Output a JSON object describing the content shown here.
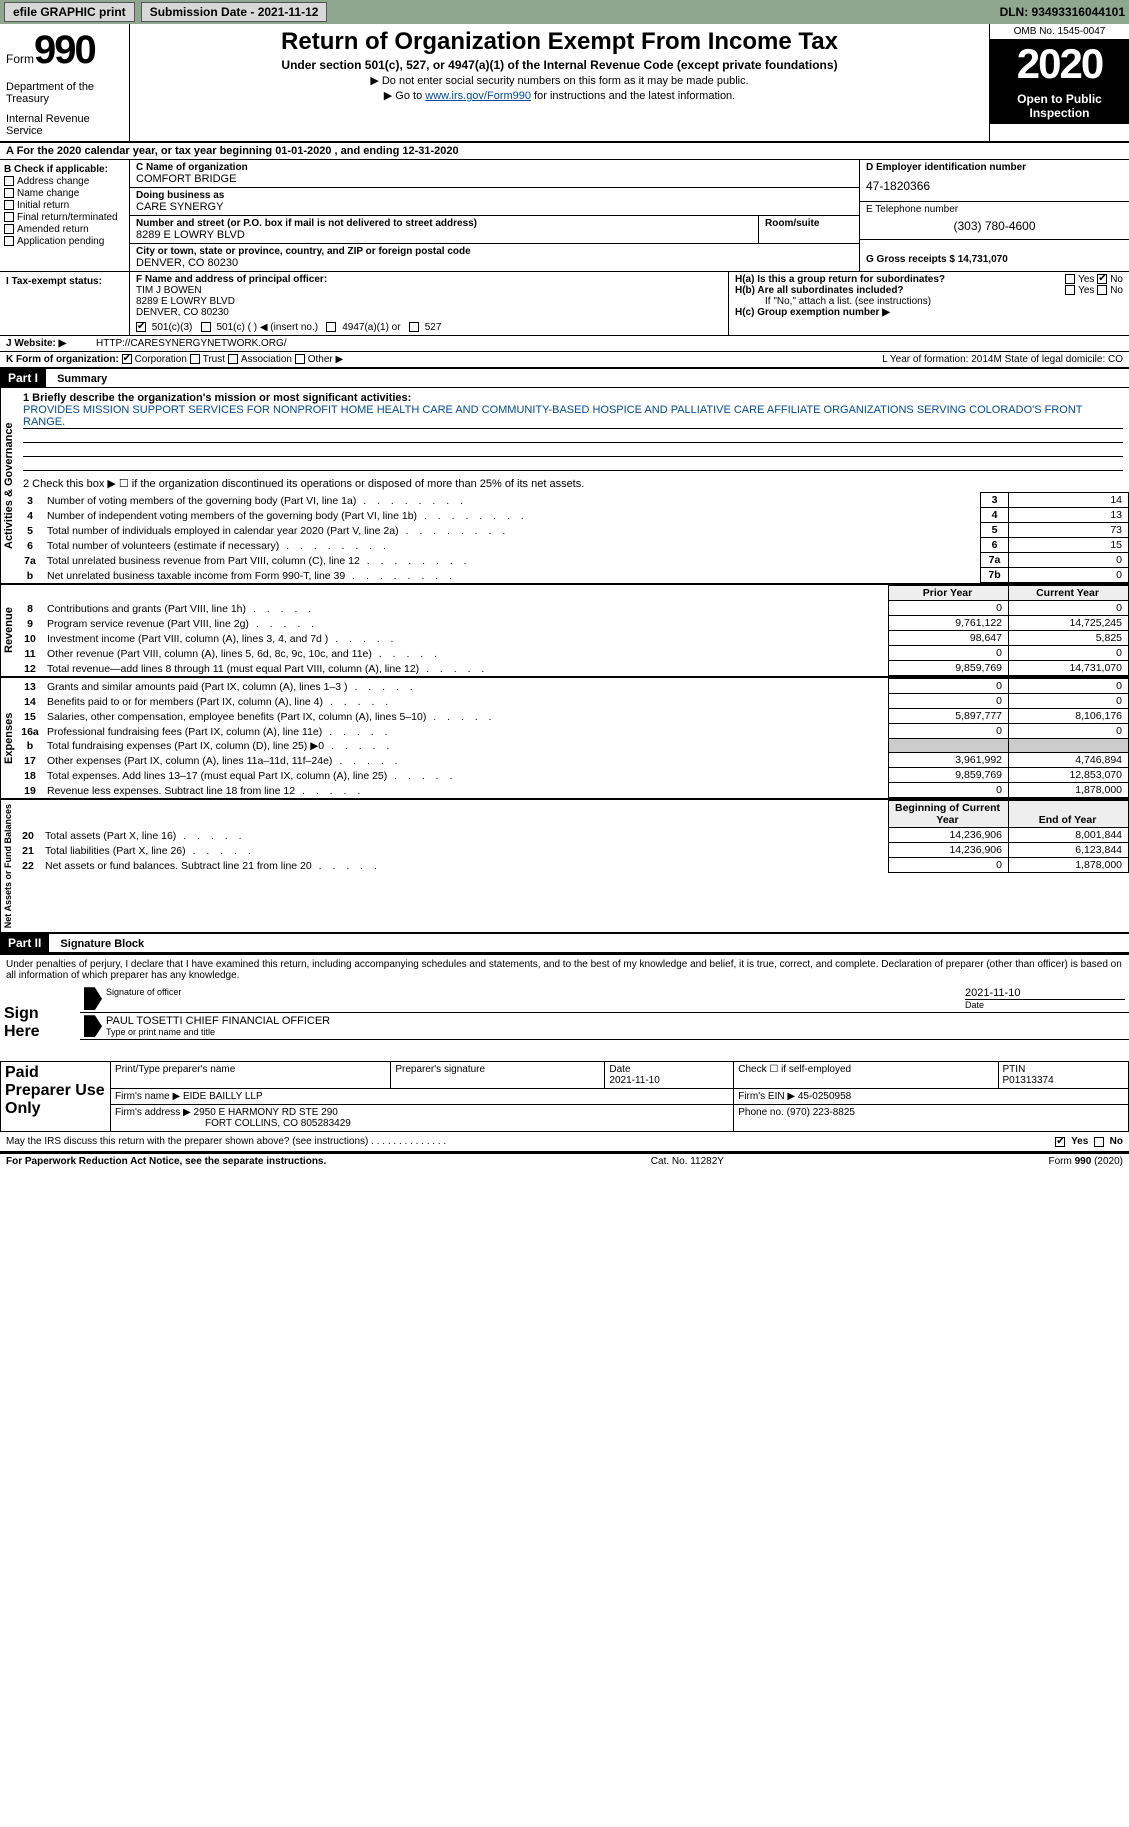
{
  "topbar": {
    "efile_label": "efile GRAPHIC print",
    "submission_label": "Submission Date - 2021-11-12",
    "dln_label": "DLN: 93493316044101"
  },
  "header": {
    "form_word": "Form",
    "form_num": "990",
    "dept1": "Department of the Treasury",
    "dept2": "Internal Revenue Service",
    "title": "Return of Organization Exempt From Income Tax",
    "subtitle": "Under section 501(c), 527, or 4947(a)(1) of the Internal Revenue Code (except private foundations)",
    "arrow1": "▶ Do not enter social security numbers on this form as it may be made public.",
    "arrow2_pre": "▶ Go to ",
    "arrow2_link": "www.irs.gov/Form990",
    "arrow2_post": " for instructions and the latest information.",
    "omb": "OMB No. 1545-0047",
    "year": "2020",
    "open1": "Open to Public",
    "open2": "Inspection"
  },
  "period": {
    "line": "A For the 2020 calendar year, or tax year beginning 01-01-2020   , and ending 12-31-2020"
  },
  "box_b": {
    "title": "B Check if applicable:",
    "items": [
      "Address change",
      "Name change",
      "Initial return",
      "Final return/terminated",
      "Amended return",
      "Application pending"
    ]
  },
  "box_c": {
    "name_lbl": "C Name of organization",
    "name": "COMFORT BRIDGE",
    "dba_lbl": "Doing business as",
    "dba": "CARE SYNERGY",
    "addr_lbl": "Number and street (or P.O. box if mail is not delivered to street address)",
    "addr": "8289 E LOWRY BLVD",
    "room_lbl": "Room/suite",
    "city_lbl": "City or town, state or province, country, and ZIP or foreign postal code",
    "city": "DENVER, CO  80230"
  },
  "box_d": {
    "ein_lbl": "D Employer identification number",
    "ein": "47-1820366",
    "phone_lbl": "E Telephone number",
    "phone": "(303) 780-4600",
    "gross_lbl": "G Gross receipts $ 14,731,070"
  },
  "box_f": {
    "lbl": "F Name and address of principal officer:",
    "name": "TIM J BOWEN",
    "addr1": "8289 E LOWRY BLVD",
    "addr2": "DENVER, CO  80230"
  },
  "box_h": {
    "ha": "H(a)  Is this a group return for subordinates?",
    "hb": "H(b)  Are all subordinates included?",
    "hb_note": "If \"No,\" attach a list. (see instructions)",
    "hc": "H(c)  Group exemption number ▶",
    "yes": "Yes",
    "no": "No"
  },
  "row_i": {
    "lbl": "I   Tax-exempt status:",
    "opts": [
      "501(c)(3)",
      "501(c) (  ) ◀ (insert no.)",
      "4947(a)(1) or",
      "527"
    ]
  },
  "row_j": {
    "lbl": "J   Website: ▶",
    "val": "HTTP://CARESYNERGYNETWORK.ORG/"
  },
  "row_k": {
    "lbl": "K Form of organization:",
    "opts": [
      "Corporation",
      "Trust",
      "Association",
      "Other ▶"
    ]
  },
  "row_lm": {
    "l": "L Year of formation: 2014",
    "m": "M State of legal domicile: CO"
  },
  "part1": {
    "hdr": "Part I",
    "title": "Summary",
    "mission_lbl": "1   Briefly describe the organization's mission or most significant activities:",
    "mission": "PROVIDES MISSION SUPPORT SERVICES FOR NONPROFIT HOME HEALTH CARE AND COMMUNITY-BASED HOSPICE AND PALLIATIVE CARE AFFILIATE ORGANIZATIONS SERVING COLORADO'S FRONT RANGE.",
    "line2": "2   Check this box ▶ ☐  if the organization discontinued its operations or disposed of more than 25% of its net assets.",
    "gov_rows": [
      {
        "n": "3",
        "t": "Number of voting members of the governing body (Part VI, line 1a)",
        "box": "3",
        "v": "14"
      },
      {
        "n": "4",
        "t": "Number of independent voting members of the governing body (Part VI, line 1b)",
        "box": "4",
        "v": "13"
      },
      {
        "n": "5",
        "t": "Total number of individuals employed in calendar year 2020 (Part V, line 2a)",
        "box": "5",
        "v": "73"
      },
      {
        "n": "6",
        "t": "Total number of volunteers (estimate if necessary)",
        "box": "6",
        "v": "15"
      },
      {
        "n": "7a",
        "t": "Total unrelated business revenue from Part VIII, column (C), line 12",
        "box": "7a",
        "v": "0"
      },
      {
        "n": "b",
        "t": "Net unrelated business taxable income from Form 990-T, line 39",
        "box": "7b",
        "v": "0"
      }
    ],
    "col_hdr_prior": "Prior Year",
    "col_hdr_curr": "Current Year",
    "rev_rows": [
      {
        "n": "8",
        "t": "Contributions and grants (Part VIII, line 1h)",
        "p": "0",
        "c": "0"
      },
      {
        "n": "9",
        "t": "Program service revenue (Part VIII, line 2g)",
        "p": "9,761,122",
        "c": "14,725,245"
      },
      {
        "n": "10",
        "t": "Investment income (Part VIII, column (A), lines 3, 4, and 7d )",
        "p": "98,647",
        "c": "5,825"
      },
      {
        "n": "11",
        "t": "Other revenue (Part VIII, column (A), lines 5, 6d, 8c, 9c, 10c, and 11e)",
        "p": "0",
        "c": "0"
      },
      {
        "n": "12",
        "t": "Total revenue—add lines 8 through 11 (must equal Part VIII, column (A), line 12)",
        "p": "9,859,769",
        "c": "14,731,070"
      }
    ],
    "exp_rows": [
      {
        "n": "13",
        "t": "Grants and similar amounts paid (Part IX, column (A), lines 1–3 )",
        "p": "0",
        "c": "0"
      },
      {
        "n": "14",
        "t": "Benefits paid to or for members (Part IX, column (A), line 4)",
        "p": "0",
        "c": "0"
      },
      {
        "n": "15",
        "t": "Salaries, other compensation, employee benefits (Part IX, column (A), lines 5–10)",
        "p": "5,897,777",
        "c": "8,106,176"
      },
      {
        "n": "16a",
        "t": "Professional fundraising fees (Part IX, column (A), line 11e)",
        "p": "0",
        "c": "0"
      },
      {
        "n": "b",
        "t": "Total fundraising expenses (Part IX, column (D), line 25) ▶0",
        "p": "",
        "c": "",
        "shade": true
      },
      {
        "n": "17",
        "t": "Other expenses (Part IX, column (A), lines 11a–11d, 11f–24e)",
        "p": "3,961,992",
        "c": "4,746,894"
      },
      {
        "n": "18",
        "t": "Total expenses. Add lines 13–17 (must equal Part IX, column (A), line 25)",
        "p": "9,859,769",
        "c": "12,853,070"
      },
      {
        "n": "19",
        "t": "Revenue less expenses. Subtract line 18 from line 12",
        "p": "0",
        "c": "1,878,000"
      }
    ],
    "col_hdr_begin": "Beginning of Current Year",
    "col_hdr_end": "End of Year",
    "net_rows": [
      {
        "n": "20",
        "t": "Total assets (Part X, line 16)",
        "p": "14,236,906",
        "c": "8,001,844"
      },
      {
        "n": "21",
        "t": "Total liabilities (Part X, line 26)",
        "p": "14,236,906",
        "c": "6,123,844"
      },
      {
        "n": "22",
        "t": "Net assets or fund balances. Subtract line 21 from line 20",
        "p": "0",
        "c": "1,878,000"
      }
    ],
    "side_gov": "Activities & Governance",
    "side_rev": "Revenue",
    "side_exp": "Expenses",
    "side_net": "Net Assets or Fund Balances"
  },
  "part2": {
    "hdr": "Part II",
    "title": "Signature Block",
    "decl": "Under penalties of perjury, I declare that I have examined this return, including accompanying schedules and statements, and to the best of my knowledge and belief, it is true, correct, and complete. Declaration of preparer (other than officer) is based on all information of which preparer has any knowledge.",
    "sign_here": "Sign Here",
    "sig_officer": "Signature of officer",
    "sig_date": "Date",
    "sig_date_val": "2021-11-10",
    "officer_name": "PAUL TOSETTI CHIEF FINANCIAL OFFICER",
    "type_name": "Type or print name and title",
    "paid_prep": "Paid Preparer Use Only",
    "prep_name_lbl": "Print/Type preparer's name",
    "prep_sig_lbl": "Preparer's signature",
    "prep_date_lbl": "Date",
    "prep_date": "2021-11-10",
    "check_self": "Check ☐ if self-employed",
    "ptin_lbl": "PTIN",
    "ptin": "P01313374",
    "firm_name_lbl": "Firm's name   ▶",
    "firm_name": "EIDE BAILLY LLP",
    "firm_ein_lbl": "Firm's EIN ▶",
    "firm_ein": "45-0250958",
    "firm_addr_lbl": "Firm's address ▶",
    "firm_addr1": "2950 E HARMONY RD STE 290",
    "firm_addr2": "FORT COLLINS, CO  805283429",
    "phone_lbl": "Phone no.",
    "phone": "(970) 223-8825",
    "may_irs": "May the IRS discuss this return with the preparer shown above? (see instructions)",
    "yes": "Yes",
    "no": "No"
  },
  "footer": {
    "left": "For Paperwork Reduction Act Notice, see the separate instructions.",
    "mid": "Cat. No. 11282Y",
    "right": "Form 990 (2020)"
  },
  "colors": {
    "topbar_bg": "#8fa68f",
    "link": "#004c9b"
  }
}
